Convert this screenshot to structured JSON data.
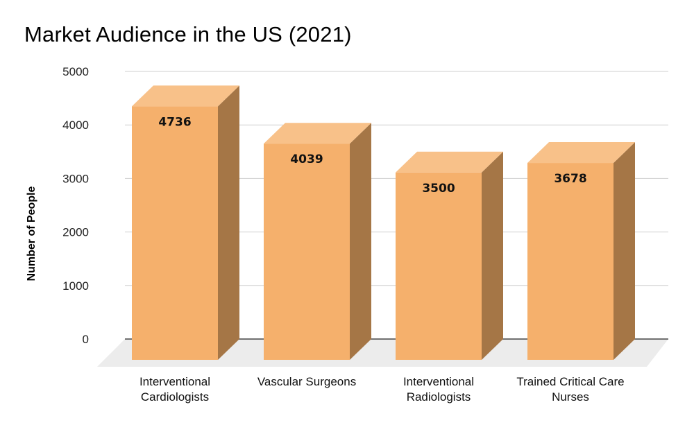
{
  "chart_data": {
    "type": "bar",
    "title": "Market Audience in the US (2021)",
    "ylabel": "Number of People",
    "xlabel": "",
    "categories": [
      [
        "Interventional",
        "Cardiologists"
      ],
      [
        "Vascular Surgeons"
      ],
      [
        "Interventional",
        "Radiologists"
      ],
      [
        "Trained Critical Care",
        "Nurses"
      ]
    ],
    "values": [
      4736,
      4039,
      3500,
      3678
    ],
    "ylim": [
      0,
      5000
    ],
    "yticks": [
      0,
      1000,
      2000,
      3000,
      4000,
      5000
    ],
    "grid": true,
    "legend": "none",
    "style": "3d",
    "colors": {
      "bar_front": "#f5b06c",
      "bar_side": "#a57646",
      "bar_top": "#f8c189",
      "floor": "#ececec",
      "grid": "#cfcfcf"
    }
  }
}
